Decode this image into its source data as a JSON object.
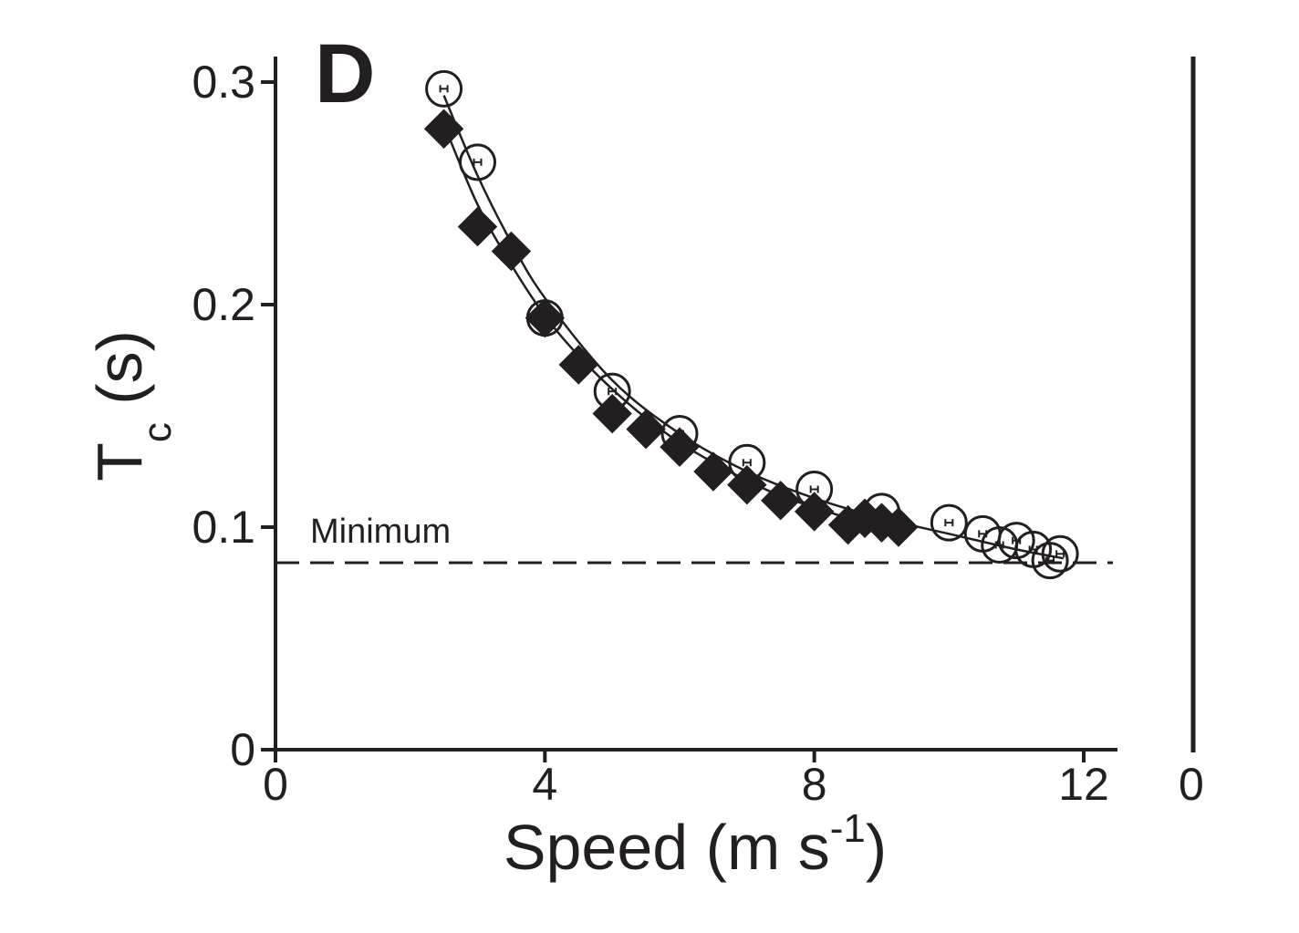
{
  "chart_data": {
    "type": "scatter",
    "panel_label": "D",
    "xlabel": {
      "main": "Speed (m s",
      "sup": "-1",
      "close": ")"
    },
    "ylabel": {
      "main": "T",
      "sub": "c",
      "rest": " (s)"
    },
    "xlim": [
      0,
      12.5
    ],
    "ylim": [
      0,
      0.3
    ],
    "xticks": [
      0,
      4,
      8,
      12
    ],
    "xtick_labels": [
      "0",
      "4",
      "8",
      "12"
    ],
    "yticks": [
      0,
      0.1,
      0.2,
      0.3
    ],
    "ytick_labels": [
      "0",
      "0.1",
      "0.2",
      "0.3"
    ],
    "next_panel_tick": "0",
    "grid": false,
    "reference_line": {
      "y": 0.084,
      "label": "Minimum",
      "style": "dashed"
    },
    "series": [
      {
        "name": "filled-diamonds",
        "marker": "diamond-filled",
        "x": [
          2.5,
          3.0,
          3.5,
          4.0,
          4.5,
          5.0,
          5.5,
          6.0,
          6.5,
          7.0,
          7.5,
          8.0,
          8.5,
          8.75,
          9.0,
          9.25
        ],
        "y": [
          0.279,
          0.235,
          0.224,
          0.194,
          0.173,
          0.151,
          0.144,
          0.136,
          0.125,
          0.119,
          0.112,
          0.107,
          0.101,
          0.104,
          0.102,
          0.1
        ]
      },
      {
        "name": "open-circles",
        "marker": "circle-open",
        "x": [
          2.5,
          3.0,
          4.0,
          5.0,
          6.0,
          7.0,
          8.0,
          9.0,
          10.0,
          10.5,
          10.75,
          11.0,
          11.25,
          11.5,
          11.65
        ],
        "y": [
          0.297,
          0.264,
          0.194,
          0.161,
          0.142,
          0.129,
          0.117,
          0.107,
          0.102,
          0.097,
          0.092,
          0.094,
          0.09,
          0.085,
          0.088
        ]
      }
    ],
    "fit_curves": [
      {
        "name": "fit-diamonds",
        "x": [
          2.5,
          3.0,
          3.5,
          4.0,
          4.5,
          5.0,
          5.5,
          6.0,
          6.5,
          7.0,
          7.5,
          8.0,
          8.5,
          9.0,
          9.3
        ],
        "y": [
          0.281,
          0.245,
          0.218,
          0.195,
          0.177,
          0.162,
          0.149,
          0.138,
          0.129,
          0.121,
          0.114,
          0.109,
          0.104,
          0.1,
          0.098
        ]
      },
      {
        "name": "fit-circles",
        "x": [
          2.5,
          3.0,
          3.5,
          4.0,
          5.0,
          6.0,
          7.0,
          8.0,
          9.0,
          10.0,
          11.0,
          11.7
        ],
        "y": [
          0.294,
          0.258,
          0.228,
          0.203,
          0.166,
          0.142,
          0.125,
          0.113,
          0.104,
          0.097,
          0.09,
          0.086
        ]
      }
    ]
  }
}
